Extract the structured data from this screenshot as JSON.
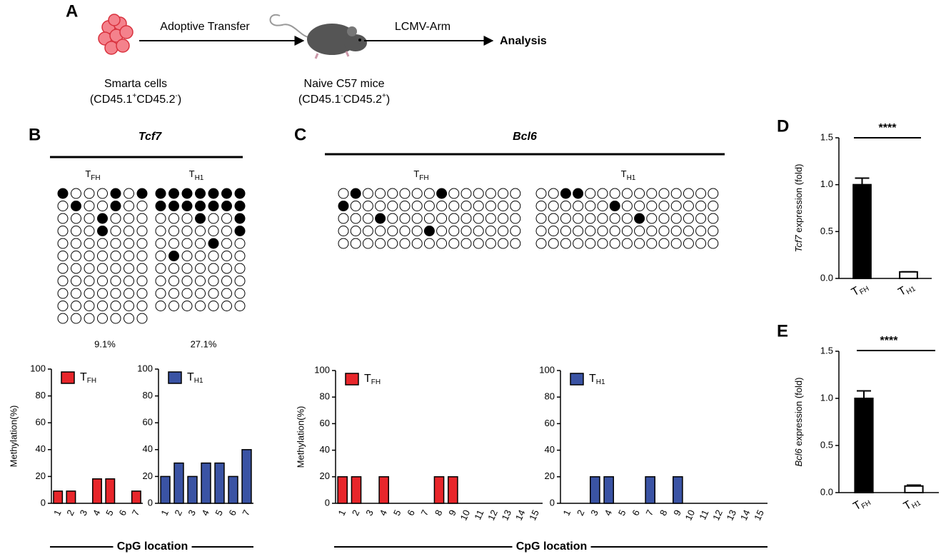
{
  "panels": [
    "A",
    "B",
    "C",
    "D",
    "E"
  ],
  "schema": {
    "step1": "Adoptive Transfer",
    "step2": "LCMV-Arm",
    "result": "Analysis",
    "donor": {
      "name": "Smarta cells",
      "markers": [
        "(CD45.1",
        "+",
        "CD45.2",
        "-",
        ")"
      ]
    },
    "host": {
      "name": "Naive C57 mice",
      "markers": [
        "(CD45.1",
        "-",
        "CD45.2",
        "+",
        ")"
      ]
    }
  },
  "methylation_maps": [
    {
      "title": "Tcf7",
      "groups": [
        {
          "label": [
            "T",
            "FH"
          ],
          "percent_label": "9.1%",
          "rows": [
            [
              1,
              0,
              0,
              0,
              1,
              0,
              1
            ],
            [
              0,
              1,
              0,
              0,
              1,
              0,
              0
            ],
            [
              0,
              0,
              0,
              1,
              0,
              0,
              0
            ],
            [
              0,
              0,
              0,
              1,
              0,
              0,
              0
            ],
            [
              0,
              0,
              0,
              0,
              0,
              0,
              0
            ],
            [
              0,
              0,
              0,
              0,
              0,
              0,
              0
            ],
            [
              0,
              0,
              0,
              0,
              0,
              0,
              0
            ],
            [
              0,
              0,
              0,
              0,
              0,
              0,
              0
            ],
            [
              0,
              0,
              0,
              0,
              0,
              0,
              0
            ],
            [
              0,
              0,
              0,
              0,
              0,
              0,
              0
            ],
            [
              0,
              0,
              0,
              0,
              0,
              0,
              0
            ]
          ]
        },
        {
          "label": [
            "T",
            "H1"
          ],
          "percent_label": "27.1%",
          "rows": [
            [
              1,
              1,
              1,
              1,
              1,
              1,
              1
            ],
            [
              1,
              1,
              1,
              1,
              1,
              1,
              1
            ],
            [
              0,
              0,
              0,
              1,
              0,
              0,
              1
            ],
            [
              0,
              0,
              0,
              0,
              0,
              0,
              1
            ],
            [
              0,
              0,
              0,
              0,
              1,
              0,
              0
            ],
            [
              0,
              1,
              0,
              0,
              0,
              0,
              0
            ],
            [
              0,
              0,
              0,
              0,
              0,
              0,
              0
            ],
            [
              0,
              0,
              0,
              0,
              0,
              0,
              0
            ],
            [
              0,
              0,
              0,
              0,
              0,
              0,
              0
            ],
            [
              0,
              0,
              0,
              0,
              0,
              0,
              0
            ]
          ]
        }
      ]
    },
    {
      "title": "Bcl6",
      "groups": [
        {
          "label": [
            "T",
            "FH"
          ],
          "rows": [
            [
              0,
              1,
              0,
              0,
              0,
              0,
              0,
              0,
              1,
              0,
              0,
              0,
              0,
              0,
              0
            ],
            [
              1,
              0,
              0,
              0,
              0,
              0,
              0,
              0,
              0,
              0,
              0,
              0,
              0,
              0,
              0
            ],
            [
              0,
              0,
              0,
              1,
              0,
              0,
              0,
              0,
              0,
              0,
              0,
              0,
              0,
              0,
              0
            ],
            [
              0,
              0,
              0,
              0,
              0,
              0,
              0,
              1,
              0,
              0,
              0,
              0,
              0,
              0,
              0
            ],
            [
              0,
              0,
              0,
              0,
              0,
              0,
              0,
              0,
              0,
              0,
              0,
              0,
              0,
              0,
              0
            ]
          ]
        },
        {
          "label": [
            "T",
            "H1"
          ],
          "rows": [
            [
              0,
              0,
              1,
              1,
              0,
              0,
              0,
              0,
              0,
              0,
              0,
              0,
              0,
              0,
              0
            ],
            [
              0,
              0,
              0,
              0,
              0,
              0,
              1,
              0,
              0,
              0,
              0,
              0,
              0,
              0,
              0
            ],
            [
              0,
              0,
              0,
              0,
              0,
              0,
              0,
              0,
              1,
              0,
              0,
              0,
              0,
              0,
              0
            ],
            [
              0,
              0,
              0,
              0,
              0,
              0,
              0,
              0,
              0,
              0,
              0,
              0,
              0,
              0,
              0
            ],
            [
              0,
              0,
              0,
              0,
              0,
              0,
              0,
              0,
              0,
              0,
              0,
              0,
              0,
              0,
              0
            ]
          ]
        }
      ]
    }
  ],
  "chart_data": [
    {
      "type": "bar",
      "ylabel": "Methylation(%)",
      "xlabel": "CpG location",
      "categories": [
        "1",
        "2",
        "3",
        "4",
        "5",
        "6",
        "7"
      ],
      "ylim": [
        0,
        100
      ],
      "yticks": [
        0,
        20,
        40,
        60,
        80,
        100
      ],
      "series": [
        {
          "name": [
            "T",
            "FH"
          ],
          "color": "#e8262b",
          "values": [
            9.1,
            9.1,
            0,
            18.2,
            18.2,
            0,
            9.1
          ]
        }
      ]
    },
    {
      "type": "bar",
      "categories": [
        "1",
        "2",
        "3",
        "4",
        "5",
        "6",
        "7"
      ],
      "ylim": [
        0,
        100
      ],
      "yticks": [
        0,
        20,
        40,
        60,
        80,
        100
      ],
      "series": [
        {
          "name": [
            "T",
            "H1"
          ],
          "color": "#3a53a4",
          "values": [
            20,
            30,
            20,
            30,
            30,
            20,
            40
          ]
        }
      ]
    },
    {
      "type": "bar",
      "ylabel": "Methylation(%)",
      "xlabel": "CpG location",
      "categories": [
        "1",
        "2",
        "3",
        "4",
        "5",
        "6",
        "7",
        "8",
        "9",
        "10",
        "11",
        "12",
        "13",
        "14",
        "15"
      ],
      "ylim": [
        0,
        100
      ],
      "yticks": [
        0,
        20,
        40,
        60,
        80,
        100
      ],
      "series": [
        {
          "name": [
            "T",
            "FH"
          ],
          "color": "#e8262b",
          "values": [
            20,
            20,
            0,
            20,
            0,
            0,
            0,
            20,
            20,
            0,
            0,
            0,
            0,
            0,
            0
          ]
        }
      ]
    },
    {
      "type": "bar",
      "categories": [
        "1",
        "2",
        "3",
        "4",
        "5",
        "6",
        "7",
        "8",
        "9",
        "10",
        "11",
        "12",
        "13",
        "14",
        "15"
      ],
      "ylim": [
        0,
        100
      ],
      "yticks": [
        0,
        20,
        40,
        60,
        80,
        100
      ],
      "series": [
        {
          "name": [
            "T",
            "H1"
          ],
          "color": "#3a53a4",
          "values": [
            0,
            0,
            20,
            20,
            0,
            0,
            20,
            0,
            20,
            0,
            0,
            0,
            0,
            0,
            0
          ]
        }
      ]
    },
    {
      "type": "bar",
      "ylabel": [
        "Tcf7",
        " expression (fold)"
      ],
      "annotation": "****",
      "categories": [
        [
          "T",
          "FH"
        ],
        [
          "T",
          "H1"
        ]
      ],
      "values": [
        1.0,
        0.07
      ],
      "errors": [
        0.07,
        0.0
      ],
      "colors": [
        "#000000",
        "#ffffff"
      ],
      "ylim": [
        0,
        1.5
      ],
      "yticks": [
        {
          "value": 0,
          "label": "0.0"
        },
        0.5,
        {
          "value": 1,
          "label": "1.0"
        },
        1.5
      ]
    },
    {
      "type": "bar",
      "ylabel": [
        "Bcl6",
        " expression (fold)"
      ],
      "annotation": "****",
      "categories": [
        [
          "T",
          "FH"
        ],
        [
          "T",
          "H1"
        ]
      ],
      "values": [
        1.0,
        0.07
      ],
      "errors": [
        0.08,
        0.01
      ],
      "colors": [
        "#000000",
        "#ffffff"
      ],
      "ylim": [
        0,
        1.5
      ],
      "yticks": [
        {
          "value": 0,
          "label": "0.0"
        },
        0.5,
        {
          "value": 1,
          "label": "1.0"
        },
        1.5
      ]
    }
  ]
}
